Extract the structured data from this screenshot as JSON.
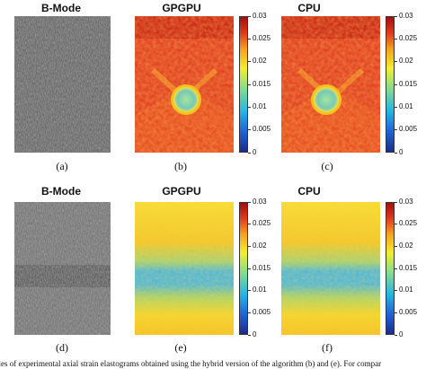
{
  "figure": {
    "row1": {
      "titles": [
        "B-Mode",
        "GPGPU",
        "CPU"
      ],
      "labels": [
        "(a)",
        "(b)",
        "(c)"
      ]
    },
    "row2": {
      "titles": [
        "B-Mode",
        "GPGPU",
        "CPU"
      ],
      "labels": [
        "(d)",
        "(e)",
        "(f)"
      ]
    },
    "colorbar_ticks": [
      "0.03",
      "0.025",
      "0.02",
      "0.015",
      "0.01",
      "0.005",
      "0"
    ],
    "colormap": "jet",
    "caption": "ples of experimental axial strain elastograms obtained using the hybrid version of the algorithm (b) and (e). For compar"
  }
}
